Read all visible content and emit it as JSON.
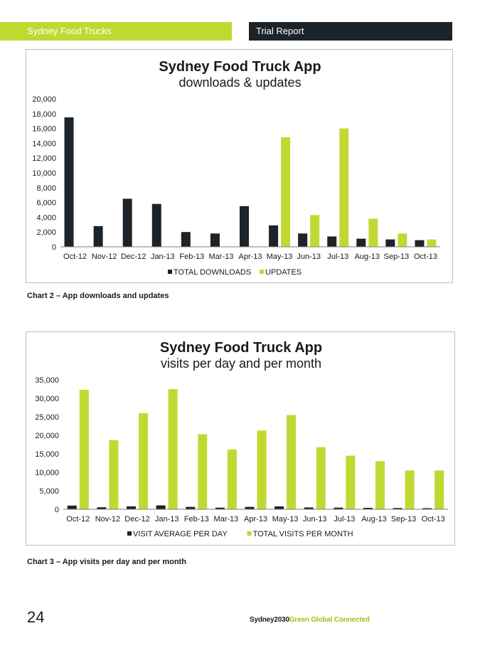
{
  "header": {
    "left_text": "Sydney Food Trucks",
    "right_text": "Trial Report"
  },
  "colors": {
    "accent_green": "#c2d832",
    "dark": "#1c2329"
  },
  "chart_data": [
    {
      "type": "bar",
      "title": "Sydney Food Truck App",
      "subtitle": "downloads & updates",
      "categories": [
        "Oct-12",
        "Nov-12",
        "Dec-12",
        "Jan-13",
        "Feb-13",
        "Mar-13",
        "Apr-13",
        "May-13",
        "Jun-13",
        "Jul-13",
        "Aug-13",
        "Sep-13",
        "Oct-13"
      ],
      "series": [
        {
          "name": "TOTAL DOWNLOADS",
          "color": "#1c2329",
          "values": [
            17500,
            2800,
            6500,
            5800,
            2000,
            1800,
            5500,
            2900,
            1800,
            1400,
            1100,
            1000,
            900
          ]
        },
        {
          "name": "UPDATES",
          "color": "#c2d832",
          "values": [
            0,
            0,
            0,
            0,
            0,
            0,
            0,
            14800,
            4300,
            16000,
            3800,
            1800,
            1000
          ]
        }
      ],
      "ylim": [
        0,
        20000
      ],
      "yticks": [
        "0",
        "2,000",
        "4,000",
        "6,000",
        "8,000",
        "10,000",
        "12,000",
        "14,000",
        "16,000",
        "18,000",
        "20,000"
      ],
      "legend_position": "bottom",
      "grid": false
    },
    {
      "type": "bar",
      "title": "Sydney Food Truck App",
      "subtitle": "visits per day and per month",
      "categories": [
        "Oct-12",
        "Nov-12",
        "Dec-12",
        "Jan-13",
        "Feb-13",
        "Mar-13",
        "Apr-13",
        "May-13",
        "Jun-13",
        "Jul-13",
        "Aug-13",
        "Sep-13",
        "Oct-13"
      ],
      "series": [
        {
          "name": "VISIT AVERAGE PER DAY",
          "color": "#1c2329",
          "values": [
            1000,
            550,
            800,
            1050,
            650,
            450,
            650,
            800,
            500,
            450,
            400,
            350,
            300
          ]
        },
        {
          "name": "TOTAL VISITS PER MONTH",
          "color": "#c2d832",
          "values": [
            32300,
            18700,
            26000,
            32500,
            20300,
            16200,
            21300,
            25500,
            16800,
            14500,
            13000,
            10500,
            10500
          ]
        }
      ],
      "ylim": [
        0,
        35000
      ],
      "yticks": [
        "0",
        "5,000",
        "10,000",
        "15,000",
        "20,000",
        "25,000",
        "30,000",
        "35,000"
      ],
      "legend_position": "bottom",
      "grid": false
    }
  ],
  "captions": {
    "chart2": "Chart 2 – App downloads and updates",
    "chart3": "Chart 3 – App visits per day and per month"
  },
  "footer": {
    "page_number": "24",
    "brand_dark": "Sydney2030",
    "brand_green": "Green Global Connected"
  }
}
